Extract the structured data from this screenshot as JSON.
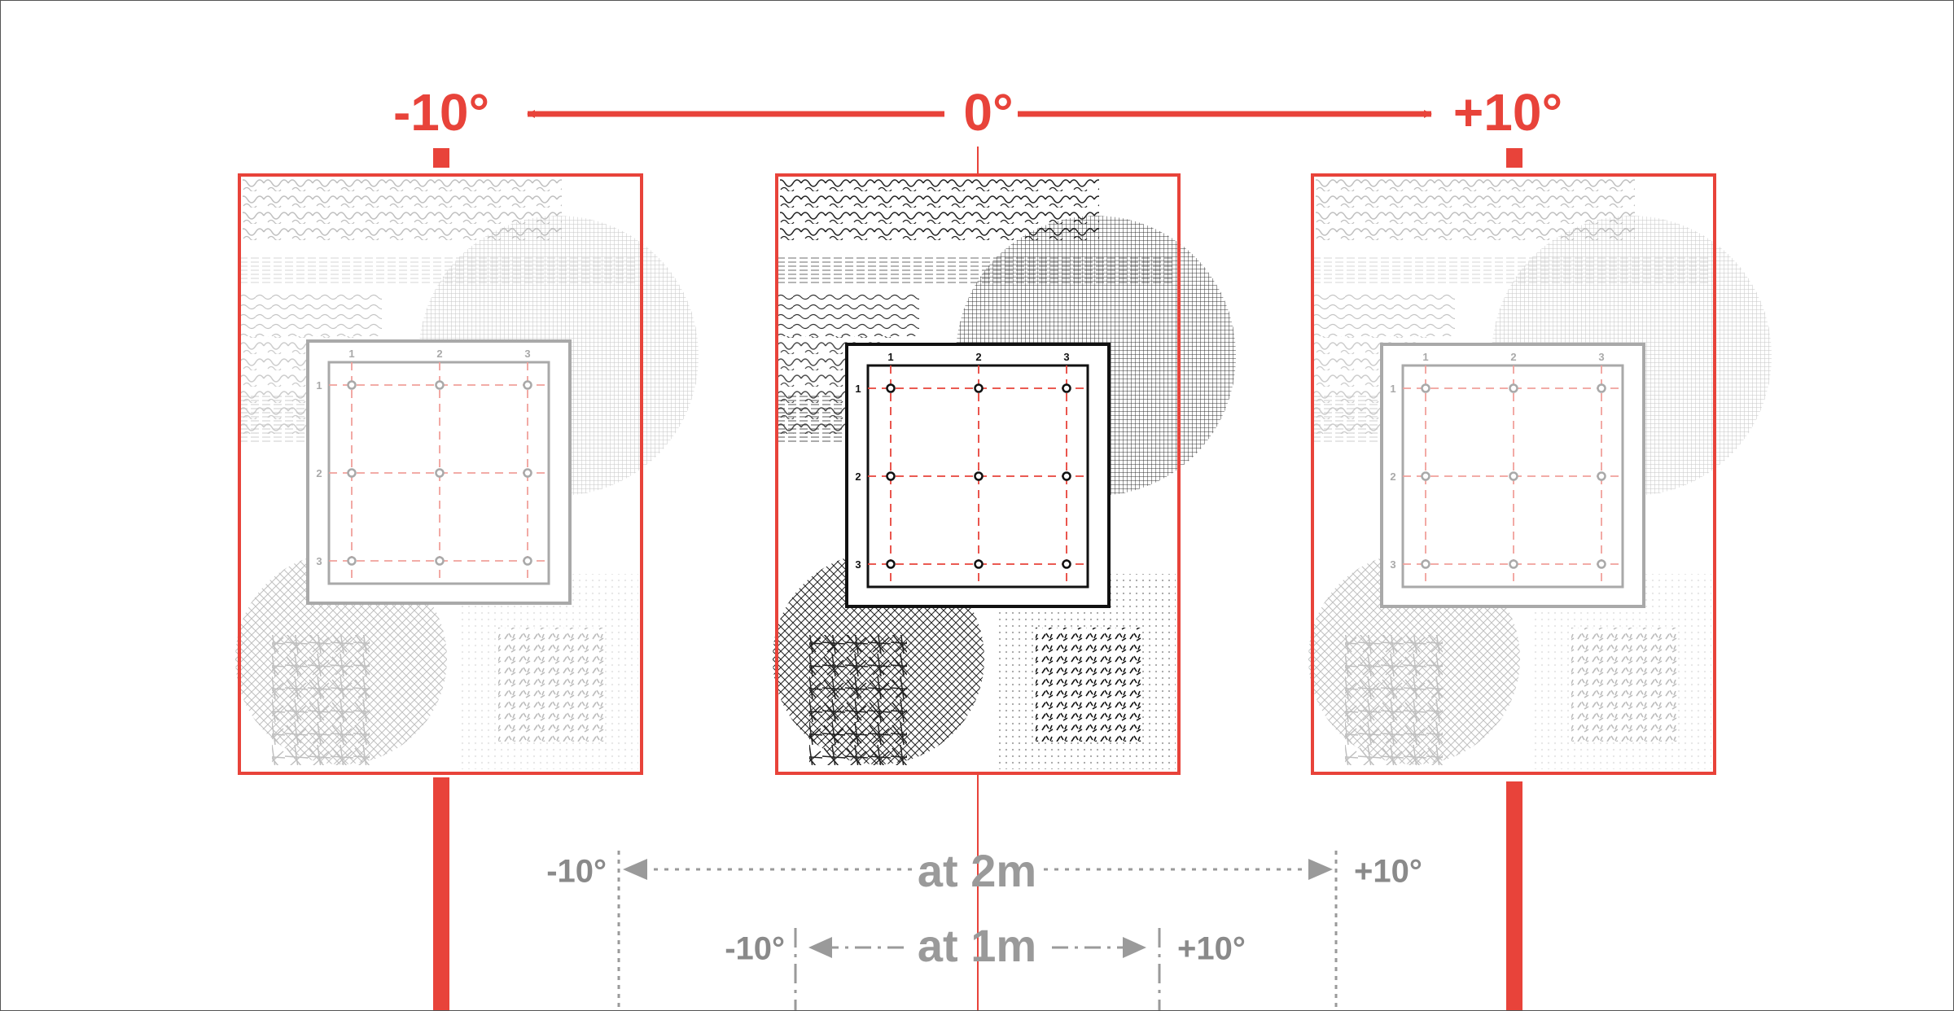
{
  "colors": {
    "accent": "#e8433a",
    "gray_text": "#8a8a8a",
    "gray_dashed": "#9a9a9a",
    "dark": "#111111"
  },
  "top_labels": {
    "left": "-10°",
    "center": "0°",
    "right": "+10°"
  },
  "panels": [
    {
      "id": "left",
      "state": "faded",
      "grid_col_labels": [
        "1",
        "2",
        "3"
      ],
      "grid_row_labels": [
        "1",
        "2",
        "3"
      ]
    },
    {
      "id": "center",
      "state": "active",
      "grid_col_labels": [
        "1",
        "2",
        "3"
      ],
      "grid_row_labels": [
        "1",
        "2",
        "3"
      ]
    },
    {
      "id": "right",
      "state": "faded",
      "grid_col_labels": [
        "1",
        "2",
        "3"
      ],
      "grid_row_labels": [
        "1",
        "2",
        "3"
      ]
    }
  ],
  "distance_2m": {
    "label": "at 2m",
    "left": "-10°",
    "right": "+10°"
  },
  "distance_1m": {
    "label": "at 1m",
    "left": "-10°",
    "right": "+10°"
  }
}
